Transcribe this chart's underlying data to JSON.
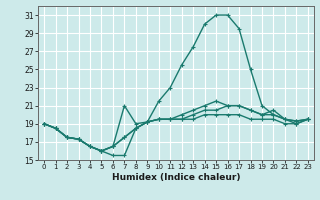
{
  "xlabel": "Humidex (Indice chaleur)",
  "bg_color": "#cdeaea",
  "grid_color": "#ffffff",
  "line_color": "#1a7a6e",
  "xlim": [
    -0.5,
    23.5
  ],
  "ylim": [
    15,
    32
  ],
  "yticks": [
    15,
    17,
    19,
    21,
    23,
    25,
    27,
    29,
    31
  ],
  "xtick_labels": [
    "0",
    "1",
    "2",
    "3",
    "4",
    "5",
    "6",
    "7",
    "8",
    "9",
    "10",
    "11",
    "12",
    "13",
    "14",
    "15",
    "16",
    "17",
    "18",
    "19",
    "20",
    "21",
    "22",
    "23"
  ],
  "series": [
    [
      19.0,
      18.5,
      17.5,
      17.3,
      16.5,
      16.0,
      15.5,
      15.5,
      18.5,
      19.2,
      21.5,
      23.0,
      25.5,
      27.5,
      30.0,
      31.0,
      31.0,
      29.5,
      25.0,
      21.0,
      20.0,
      19.5,
      19.3,
      19.5
    ],
    [
      19.0,
      18.5,
      17.5,
      17.3,
      16.5,
      16.0,
      16.5,
      21.0,
      19.0,
      19.2,
      19.5,
      19.5,
      20.0,
      20.5,
      21.0,
      21.5,
      21.0,
      21.0,
      20.5,
      20.0,
      20.5,
      19.5,
      19.3,
      19.5
    ],
    [
      19.0,
      18.5,
      17.5,
      17.3,
      16.5,
      16.0,
      16.5,
      17.5,
      18.5,
      19.2,
      19.5,
      19.5,
      19.5,
      20.0,
      20.5,
      20.5,
      21.0,
      21.0,
      20.5,
      20.0,
      20.0,
      19.5,
      19.0,
      19.5
    ],
    [
      19.0,
      18.5,
      17.5,
      17.3,
      16.5,
      16.0,
      16.5,
      17.5,
      18.5,
      19.2,
      19.5,
      19.5,
      19.5,
      19.5,
      20.0,
      20.0,
      20.0,
      20.0,
      19.5,
      19.5,
      19.5,
      19.0,
      19.0,
      19.5
    ]
  ]
}
